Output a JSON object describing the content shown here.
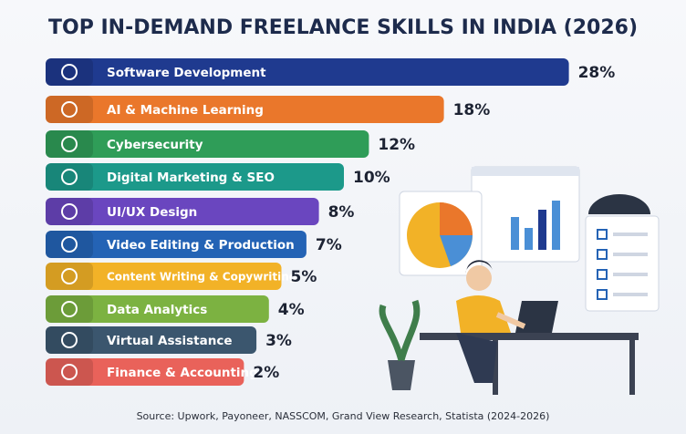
{
  "chart_data": {
    "type": "bar",
    "title": "TOP IN-DEMAND FREELANCE SKILLS  IN INDIA (2026)",
    "categories": [
      "Software Development",
      "AI & Machine Learning",
      "Cybersecurity",
      "Digital Marketing & SEO",
      "UI/UX Design",
      "Video Editing & Production",
      "Content Writing & Copywriting",
      "Data Analytics",
      "Virtual Assistance",
      "Finance & Accounting"
    ],
    "values": [
      28,
      18,
      12,
      10,
      8,
      7,
      5,
      4,
      3,
      2
    ],
    "value_labels": [
      "28%",
      "18%",
      "12%",
      "10%",
      "8%",
      "7%",
      "5%",
      "4%",
      "3%",
      "2%"
    ],
    "colors": [
      "#1f3a8f",
      "#ea772b",
      "#2f9d58",
      "#1c998a",
      "#6a46bf",
      "#2463b5",
      "#f2b227",
      "#7cb241",
      "#3b566e",
      "#e9625a"
    ],
    "source": "Source: Upwork, Payoneer, NASSCOM, Grand View Research, Statista (2024-2026)"
  }
}
